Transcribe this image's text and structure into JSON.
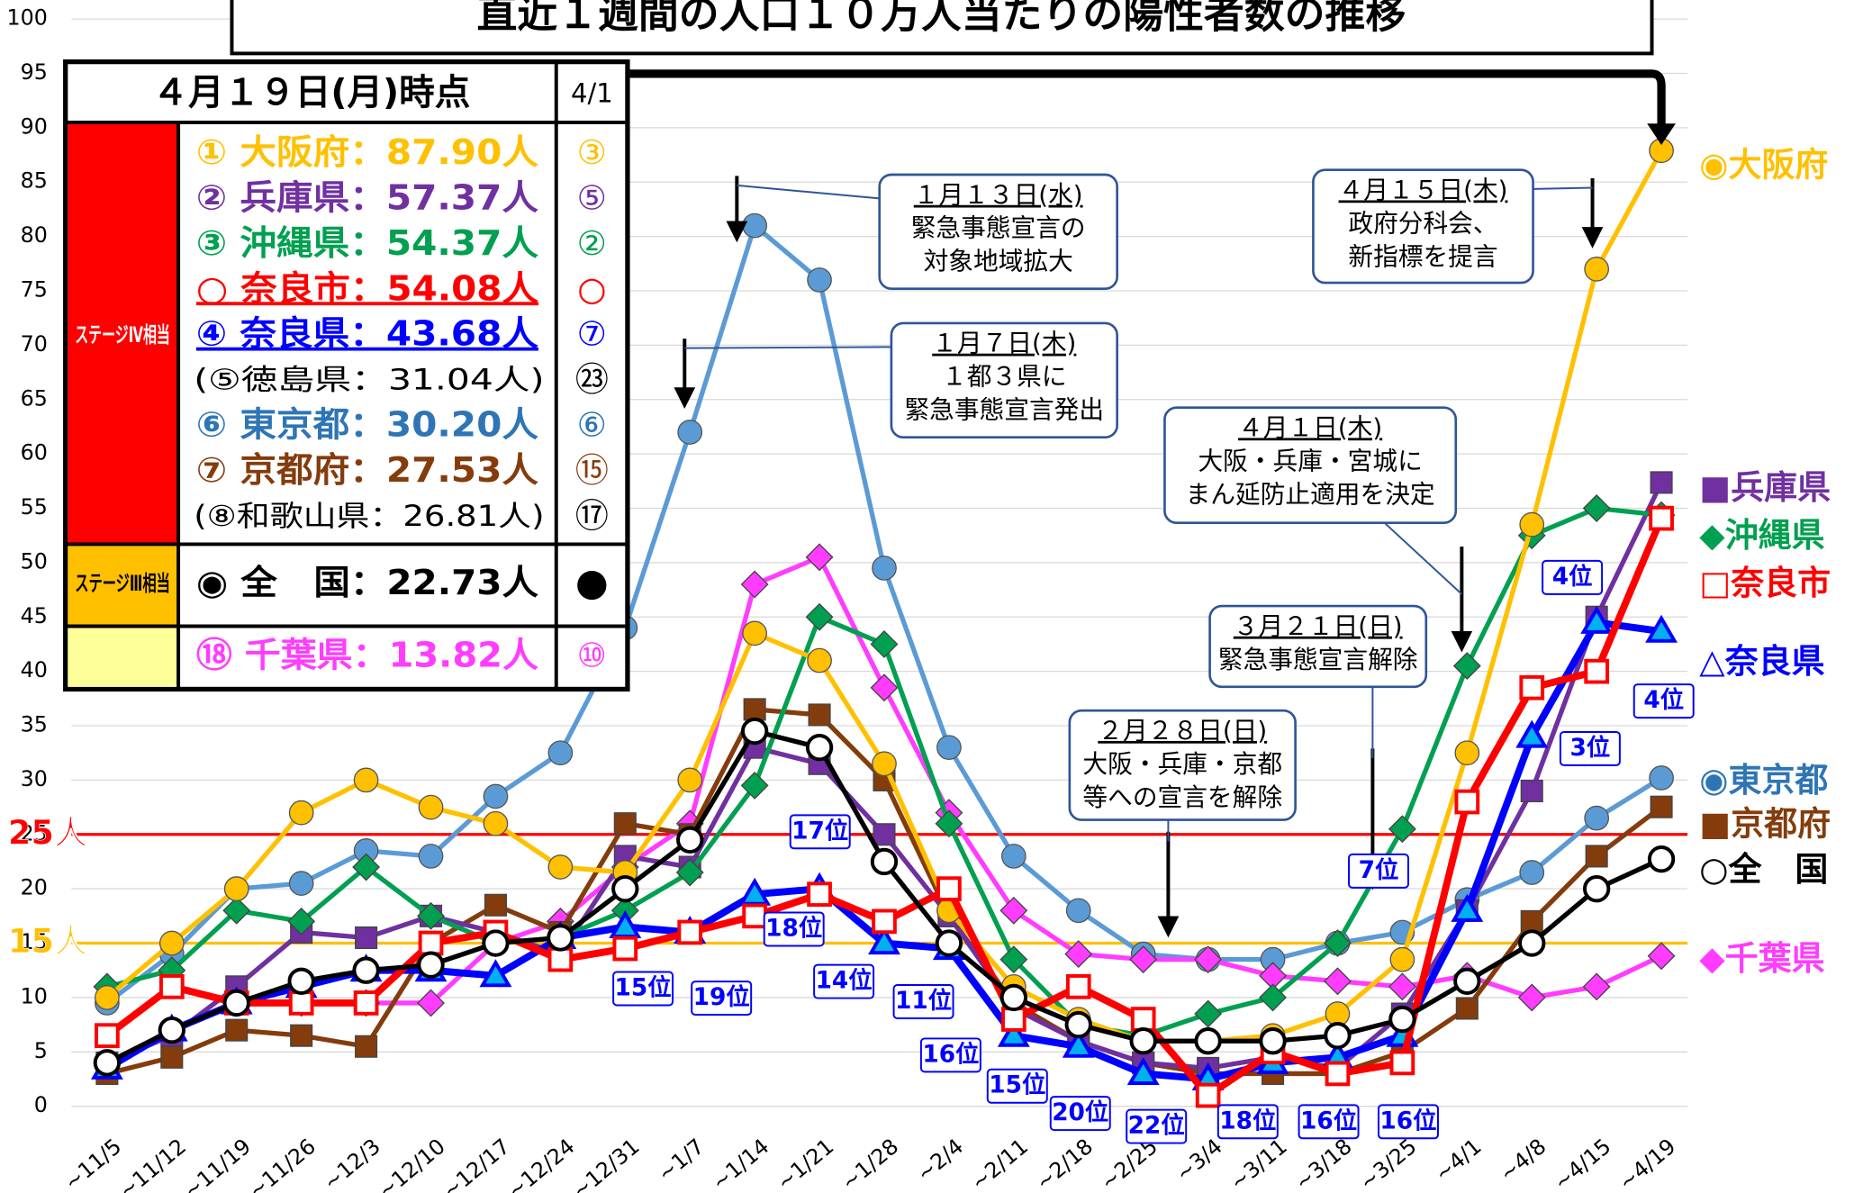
{
  "chart_data": {
    "type": "line",
    "title": "直近１週間の人口１０万人当たりの陽性者数の推移",
    "categories": [
      "~11/5",
      "~11/12",
      "~11/19",
      "~11/26",
      "~12/3",
      "~12/10",
      "~12/17",
      "~12/24",
      "~12/31",
      "~1/7",
      "~1/14",
      "~1/21",
      "~1/28",
      "~2/4",
      "~2/11",
      "~2/18",
      "~2/25",
      "~3/4",
      "~3/11",
      "~3/18",
      "~3/25",
      "~4/1",
      "~4/8",
      "~4/15",
      "~4/19"
    ],
    "ylim": [
      0,
      100
    ],
    "yticks": [
      0,
      5,
      10,
      15,
      20,
      25,
      30,
      35,
      40,
      45,
      50,
      55,
      60,
      65,
      70,
      75,
      80,
      85,
      90,
      95,
      100
    ],
    "grid": true,
    "series": [
      {
        "name": "◉東京都",
        "color": "#5B9BD5",
        "marker": "circle",
        "values": [
          9.5,
          14,
          20,
          20.5,
          23.5,
          23,
          28.5,
          32.5,
          44,
          62,
          81,
          76,
          49.5,
          33,
          23,
          18,
          14,
          13.5,
          13.5,
          15,
          16,
          19,
          21.5,
          26.5,
          30.2
        ]
      },
      {
        "name": "◆千葉県",
        "color": "#FF3CFF",
        "marker": "diamond",
        "values": [
          4,
          7,
          9.5,
          9.5,
          9.5,
          9.5,
          15,
          17,
          22,
          26,
          48,
          50.5,
          38.5,
          27,
          18,
          14,
          13.5,
          13.5,
          12,
          11.5,
          11,
          12,
          10,
          11,
          13.82
        ]
      },
      {
        "name": "■京都府",
        "color": "#843C0C",
        "marker": "square",
        "values": [
          3,
          4.5,
          7,
          6.5,
          5.5,
          15,
          18.5,
          16,
          26,
          25,
          36.5,
          36,
          30,
          17.5,
          9.5,
          6,
          4,
          3,
          3,
          3,
          5,
          9,
          17,
          23,
          27.53
        ]
      },
      {
        "name": "■兵庫県",
        "color": "#7030A0",
        "marker": "square",
        "values": [
          4,
          6.5,
          11,
          16,
          15.5,
          17.5,
          16,
          14,
          23,
          22,
          33,
          31.5,
          25,
          17.5,
          9,
          6,
          4,
          3.5,
          4.5,
          3.5,
          8.5,
          18,
          29,
          45,
          57.37
        ]
      },
      {
        "name": "◆沖縄県",
        "color": "#00A050",
        "marker": "diamond",
        "values": [
          11,
          12.5,
          18,
          17,
          22,
          17.5,
          15,
          15.5,
          18,
          21.5,
          29.5,
          45,
          42.5,
          26,
          13.5,
          7.5,
          6.5,
          8.5,
          10,
          15,
          25.5,
          40.5,
          52.5,
          55,
          54.37
        ]
      },
      {
        "name": "◉大阪府",
        "color": "#FFC000",
        "marker": "circle",
        "values": [
          10,
          15,
          20,
          27,
          30,
          27.5,
          26,
          22,
          21.5,
          30,
          43.5,
          41,
          31.5,
          18,
          11,
          8,
          6,
          6,
          6.5,
          8.5,
          13.5,
          32.5,
          53.5,
          77,
          87.9
        ]
      },
      {
        "name": "△奈良県",
        "color": "#0000FF",
        "marker": "triangle",
        "values": [
          3.5,
          7,
          9.5,
          11,
          12.5,
          12.5,
          12,
          15.5,
          16.5,
          16,
          19.5,
          20,
          15,
          14.5,
          6.5,
          5.5,
          3,
          2.5,
          4,
          4.5,
          6.5,
          18,
          34,
          44.5,
          43.68
        ]
      },
      {
        "name": "□奈良市",
        "color": "#FF0000",
        "marker": "square",
        "values": [
          6.5,
          11,
          9.5,
          9.5,
          9.5,
          15,
          16,
          13.5,
          14.5,
          16,
          17.5,
          19.5,
          17,
          20,
          8,
          11,
          8,
          1,
          5,
          3,
          4,
          28,
          38.5,
          40,
          54.08
        ]
      },
      {
        "name": "○全　国",
        "color": "#000000",
        "marker": "circle",
        "values": [
          4,
          7,
          9.5,
          11.5,
          12.5,
          13,
          15,
          15.5,
          20,
          24.5,
          34.5,
          33,
          22.5,
          15,
          10,
          7.5,
          6,
          6,
          6,
          6.5,
          8,
          11.5,
          15,
          20,
          22.73
        ]
      }
    ],
    "reference_lines": [
      {
        "value": 25,
        "label": "25人",
        "color": "#FF0000"
      },
      {
        "value": 15,
        "label": "15人",
        "color": "#FFC000"
      }
    ],
    "annotations": [
      [
        "１月１３日(水)",
        "緊急事態宣言の",
        "対象地域拡大"
      ],
      [
        "１月７日(木)",
        "１都３県に",
        "緊急事態宣言発出"
      ],
      [
        "４月１５日(木)",
        "政府分科会、",
        "新指標を提言"
      ],
      [
        "４月１日(木)",
        "大阪・兵庫・宮城に",
        "まん延防止適用を決定"
      ],
      [
        "３月２１日(日)",
        "緊急事態宣言解除"
      ],
      [
        "２月２８日(日)",
        "大阪・兵庫・京都",
        "等への宣言を解除"
      ]
    ],
    "rank_labels": [
      "17位",
      "18位",
      "15位",
      "19位",
      "14位",
      "11位",
      "16位",
      "15位",
      "20位",
      "22位",
      "18位",
      "16位",
      "16位",
      "7位",
      "3位",
      "4位",
      "4位"
    ],
    "table": {
      "title": "４月１９日(月)時点",
      "compare": "4/1",
      "stage4": "ステージⅣ相当",
      "stage3": "ステージⅢ相当",
      "rows": [
        {
          "text": "① 大阪府：87.90人",
          "rank": "③",
          "color": "#FFC000"
        },
        {
          "text": "② 兵庫県：57.37人",
          "rank": "⑤",
          "color": "#7030A0"
        },
        {
          "text": "③ 沖縄県：54.37人",
          "rank": "②",
          "color": "#00A050"
        },
        {
          "text": "○ 奈良市：54.08人",
          "rank": "○",
          "color": "#FF0000"
        },
        {
          "text": "④ 奈良県：43.68人",
          "rank": "⑦",
          "color": "#0000FF"
        },
        {
          "text": "(⑤徳島県：31.04人)",
          "rank": "㉓",
          "color": "#000000"
        },
        {
          "text": "⑥ 東京都：30.20人",
          "rank": "⑥",
          "color": "#2E75B6"
        },
        {
          "text": "⑦ 京都府：27.53人",
          "rank": "⑮",
          "color": "#843C0C"
        },
        {
          "text": "(⑧和歌山県：26.81人)",
          "rank": "⑰",
          "color": "#000000"
        }
      ],
      "national": {
        "text": "◉ 全　国：22.73人",
        "rank": "●"
      },
      "chiba": {
        "text": "⑱ 千葉県：13.82人",
        "rank": "⑩"
      }
    }
  }
}
